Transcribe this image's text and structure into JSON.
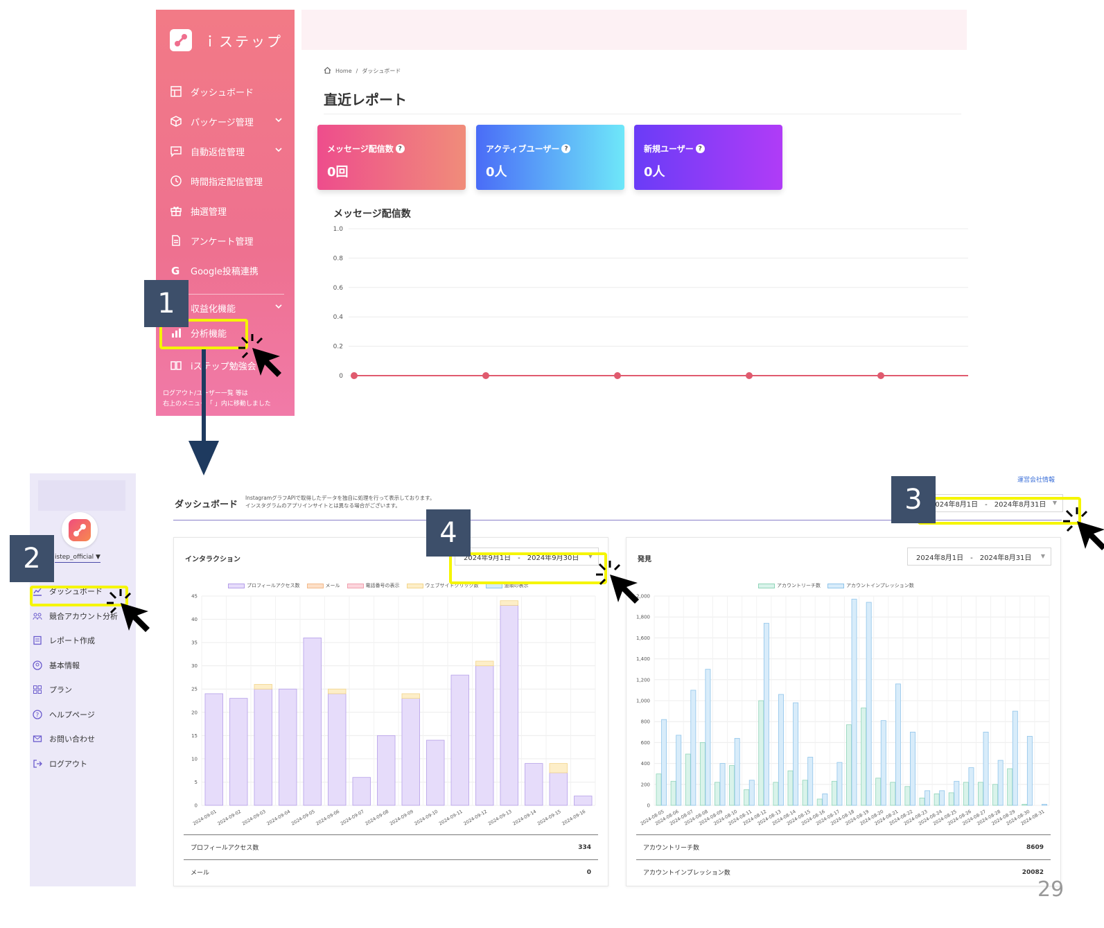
{
  "top": {
    "app_name": "ｉステップ",
    "sidebar": {
      "items": [
        {
          "label": "ダッシュボード",
          "icon": "dashboard-icon"
        },
        {
          "label": "パッケージ管理",
          "icon": "package-icon",
          "chevron": true
        },
        {
          "label": "自動返信管理",
          "icon": "chat-icon",
          "chevron": true
        },
        {
          "label": "時間指定配信管理",
          "icon": "clock-icon"
        },
        {
          "label": "抽選管理",
          "icon": "gift-icon"
        },
        {
          "label": "アンケート管理",
          "icon": "document-icon"
        },
        {
          "label": "Google投稿連携",
          "icon": "google-icon"
        },
        {
          "label": "収益化機能",
          "icon": "money-icon",
          "chevron": true
        },
        {
          "label": "分析機能",
          "icon": "bar-chart-icon"
        },
        {
          "label": "iステップ勉強会",
          "icon": "book-icon"
        }
      ],
      "note_line1": "ログアウト/ユーザー一覧 等は",
      "note_line2": "右上のメニュー「 」内に移動しました"
    },
    "breadcrumb": {
      "home": "Home",
      "sep": "/",
      "current": "ダッシュボード"
    },
    "page_title": "直近レポート",
    "cards": [
      {
        "label": "メッセージ配信数",
        "value": "0回",
        "gradient": [
          "#ee4d8c",
          "#f08c7a"
        ]
      },
      {
        "label": "アクティブユーザー",
        "value": "0人",
        "gradient": [
          "#4a6cf7",
          "#6ee7f9"
        ]
      },
      {
        "label": "新規ユーザー",
        "value": "0人",
        "gradient": [
          "#6a3cf7",
          "#b03cf7"
        ]
      }
    ],
    "chart_title": "メッセージ配信数"
  },
  "bottom": {
    "sidebar": {
      "account": "istep_official ▼",
      "items": [
        {
          "label": "ダッシュボード",
          "icon": "chart-line-icon"
        },
        {
          "label": "競合アカウント分析",
          "icon": "users-icon"
        },
        {
          "label": "レポート作成",
          "icon": "report-icon"
        },
        {
          "label": "基本情報",
          "icon": "user-circle-icon"
        },
        {
          "label": "プラン",
          "icon": "grid-icon"
        },
        {
          "label": "ヘルプページ",
          "icon": "help-icon"
        },
        {
          "label": "お問い合わせ",
          "icon": "mail-icon"
        },
        {
          "label": "ログアウト",
          "icon": "logout-icon"
        }
      ]
    },
    "company_link": "運営会社情報",
    "dashboard_title": "ダッシュボード",
    "dashboard_desc_1": "InstagramグラフAPIで取得したデータを独自に処理を行って表示しております。",
    "dashboard_desc_2": "インスタグラムのアプリインサイトとは異なる場合がございます。",
    "header_date_range": "2024年8月1日　-　2024年8月31日",
    "interaction": {
      "title": "インタラクション",
      "date_range": "2024年9月1日　-　2024年9月30日",
      "summary": [
        {
          "label": "プロフィールアクセス数",
          "value": "334"
        },
        {
          "label": "メール",
          "value": "0"
        }
      ]
    },
    "discovery": {
      "title": "発見",
      "date_range": "2024年8月1日　-　2024年8月31日",
      "summary": [
        {
          "label": "アカウントリーチ数",
          "value": "8609"
        },
        {
          "label": "アカウントインプレッション数",
          "value": "20082"
        }
      ]
    }
  },
  "annotations": [
    "1",
    "2",
    "3",
    "4"
  ],
  "page_number": "29",
  "colors": {
    "highlight": "#f5f500",
    "annotation_box": "#3d4f6a",
    "line_chart": "#e05a6e"
  },
  "chart_data": [
    {
      "type": "line",
      "title": "メッセージ配信数",
      "series": [
        {
          "values": [
            0,
            0,
            0,
            0,
            0
          ]
        }
      ],
      "ylim": [
        0,
        1.0
      ],
      "yticks": [
        "1.0",
        "0.8",
        "0.6",
        "0.4",
        "0.2",
        "0"
      ],
      "grid": true
    },
    {
      "type": "bar",
      "stacked": true,
      "title": "インタラクション",
      "categories": [
        "2024-09-01",
        "2024-09-02",
        "2024-09-03",
        "2024-09-04",
        "2024-09-05",
        "2024-09-06",
        "2024-09-07",
        "2024-09-08",
        "2024-09-09",
        "2024-09-10",
        "2024-09-11",
        "2024-09-12",
        "2024-09-13",
        "2024-09-14",
        "2024-09-15",
        "2024-09-16"
      ],
      "series": [
        {
          "name": "プロフィールアクセス数",
          "values": [
            24,
            23,
            25,
            25,
            36,
            24,
            6,
            15,
            23,
            14,
            28,
            30,
            43,
            9,
            7,
            2
          ],
          "fill": "#e6dcfa",
          "stroke": "#b49ee8"
        },
        {
          "name": "メール",
          "values": [
            0,
            0,
            0,
            0,
            0,
            0,
            0,
            0,
            0,
            0,
            0,
            0,
            0,
            0,
            0,
            0
          ],
          "fill": "#fde0c8",
          "stroke": "#f2b98a"
        },
        {
          "name": "電話番号の表示",
          "values": [
            0,
            0,
            0,
            0,
            0,
            0,
            0,
            0,
            0,
            0,
            0,
            0,
            0,
            0,
            0,
            0
          ],
          "fill": "#fcd5dc",
          "stroke": "#f0a0ae"
        },
        {
          "name": "ウェブサイトクリック数",
          "values": [
            0,
            0,
            1,
            0,
            0,
            1,
            0,
            0,
            1,
            0,
            0,
            1,
            1,
            0,
            2,
            0
          ],
          "fill": "#fdeec8",
          "stroke": "#f2d48a"
        },
        {
          "name": "道順の表示",
          "values": [
            0,
            0,
            0,
            0,
            0,
            0,
            0,
            0,
            0,
            0,
            0,
            0,
            0,
            0,
            0,
            0
          ],
          "fill": "#d6ecfa",
          "stroke": "#8fc4ea"
        }
      ],
      "ylim": [
        0,
        45
      ],
      "yticks": [
        0,
        5,
        10,
        15,
        20,
        25,
        30,
        35,
        40,
        45
      ],
      "grid": true,
      "legend": "top"
    },
    {
      "type": "bar",
      "title": "発見",
      "categories": [
        "2024-08-05",
        "2024-08-06",
        "2024-08-07",
        "2024-08-08",
        "2024-08-09",
        "2024-08-10",
        "2024-08-11",
        "2024-08-12",
        "2024-08-13",
        "2024-08-14",
        "2024-08-15",
        "2024-08-16",
        "2024-08-17",
        "2024-08-18",
        "2024-08-19",
        "2024-08-20",
        "2024-08-21",
        "2024-08-22",
        "2024-08-23",
        "2024-08-24",
        "2024-08-25",
        "2024-08-26",
        "2024-08-27",
        "2024-08-28",
        "2024-08-29",
        "2024-08-30",
        "2024-08-31"
      ],
      "series": [
        {
          "name": "アカウントリーチ数",
          "values": [
            300,
            230,
            490,
            600,
            220,
            380,
            150,
            1000,
            220,
            330,
            240,
            60,
            230,
            770,
            930,
            260,
            220,
            180,
            70,
            110,
            120,
            220,
            220,
            200,
            350,
            10,
            0
          ],
          "fill": "#d9f3ea",
          "stroke": "#8fd4b8"
        },
        {
          "name": "アカウントインプレッション数",
          "values": [
            820,
            670,
            1100,
            1300,
            400,
            640,
            240,
            1740,
            1060,
            980,
            460,
            110,
            410,
            1970,
            1940,
            810,
            1160,
            700,
            140,
            140,
            230,
            360,
            700,
            430,
            900,
            660,
            10
          ],
          "fill": "#d8ecfa",
          "stroke": "#8fc4ea"
        }
      ],
      "ylim": [
        0,
        2000
      ],
      "yticks": [
        0,
        200,
        400,
        600,
        800,
        1000,
        1200,
        1400,
        1600,
        1800,
        2000
      ],
      "ytick_labels": [
        "0",
        "200",
        "400",
        "600",
        "800",
        "1,000",
        "1,200",
        "1,400",
        "1,600",
        "1,800",
        "2,000"
      ],
      "grid": true,
      "legend": "top"
    }
  ]
}
